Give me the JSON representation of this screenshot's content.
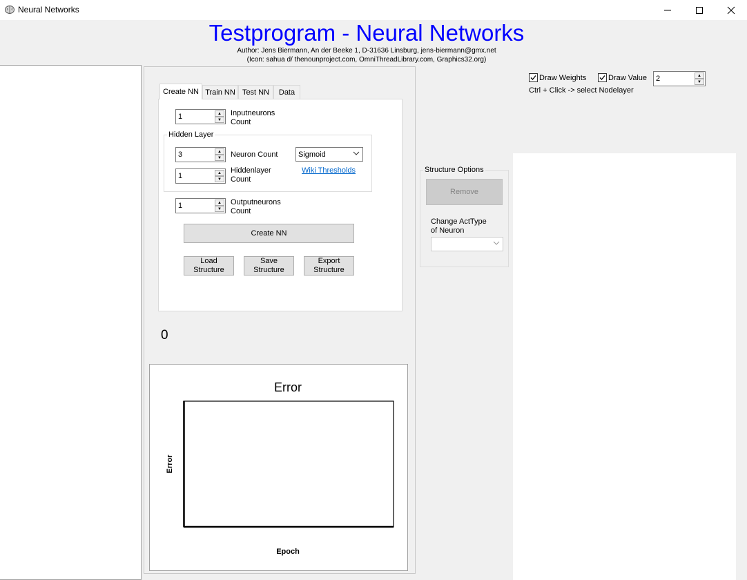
{
  "window": {
    "title": "Neural Networks",
    "icon": "brain-icon",
    "controls": {
      "minimize": "—",
      "maximize": "☐",
      "close": "✕"
    }
  },
  "header": {
    "title": "Testprogram - Neural Networks",
    "author_line": "Author: Jens Biermann, An der Beeke 1, D-31636 Linsburg, jens-biermann@gmx.net",
    "icon_line": "(Icon: sahua d/ thenounproject.com, OmniThreadLibrary.com, Graphics32.org)"
  },
  "tabs": [
    {
      "label": "Create NN",
      "active": true
    },
    {
      "label": "Train NN",
      "active": false
    },
    {
      "label": "Test NN",
      "active": false
    },
    {
      "label": "Data",
      "active": false
    }
  ],
  "create_nn": {
    "input_neurons": {
      "value": "1",
      "label_line1": "Inputneurons",
      "label_line2": "Count"
    },
    "hidden_layer": {
      "title": "Hidden Layer",
      "neuron_count": {
        "value": "3",
        "label": "Neuron Count"
      },
      "activation": {
        "selected": "Sigmoid"
      },
      "wiki_link": "Wiki Thresholds",
      "layer_count": {
        "value": "1",
        "label_line1": "Hiddenlayer",
        "label_line2": "Count"
      }
    },
    "output_neurons": {
      "value": "1",
      "label_line1": "Outputneurons",
      "label_line2": "Count"
    },
    "create_button": "Create NN",
    "load_button": {
      "line1": "Load",
      "line2": "Structure"
    },
    "save_button": {
      "line1": "Save",
      "line2": "Structure"
    },
    "export_button": {
      "line1": "Export",
      "line2": "Structure"
    }
  },
  "counter_value": "0",
  "structure_options": {
    "title": "Structure Options",
    "remove_button": "Remove",
    "change_label_line1": "Change ActType",
    "change_label_line2": "of Neuron",
    "acttype_selected": ""
  },
  "draw_options": {
    "draw_weights": {
      "label": "Draw Weights",
      "checked": true
    },
    "draw_value": {
      "label": "Draw Value",
      "checked": true
    },
    "precision_value": "2",
    "hint": "Ctrl + Click -> select Nodelayer"
  },
  "chart_data": {
    "type": "line",
    "title": "Error",
    "xlabel": "Epoch",
    "ylabel": "Error",
    "series": [],
    "x": []
  }
}
